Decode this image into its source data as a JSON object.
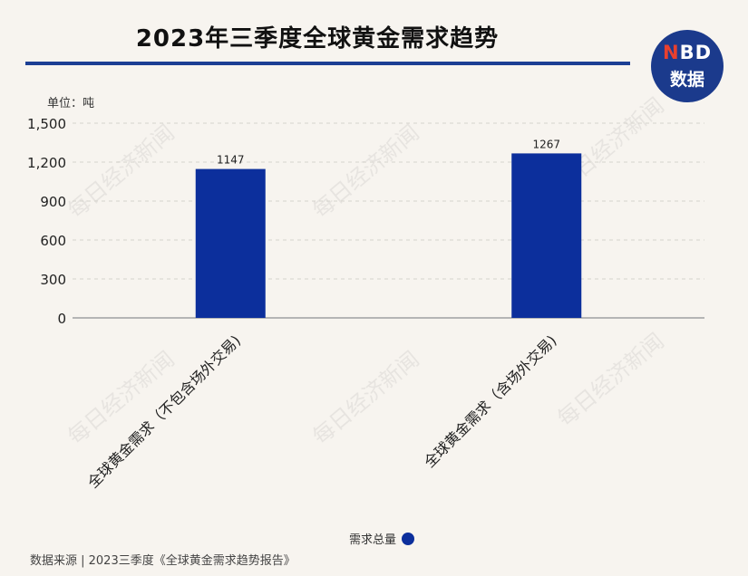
{
  "header": {
    "title": "2023年三季度全球黄金需求趋势",
    "logo_line1_n": "N",
    "logo_line1_rest": "BD",
    "logo_line2": "数据"
  },
  "unit_label": "单位：吨",
  "watermark": "每日经济新闻",
  "legend": {
    "label": "需求总量",
    "color": "#0c2f9c"
  },
  "source": "数据来源 | 2023三季度《全球黄金需求趋势报告》",
  "colors": {
    "bar": "#0c2f9c",
    "title_rule": "#1c3f94",
    "background": "#f7f4ef"
  },
  "chart_data": {
    "type": "bar",
    "categories": [
      "全球黄金需求（不包含场外交易)",
      "全球黄金需求（含场外交易)"
    ],
    "series": [
      {
        "name": "需求总量",
        "values": [
          1147,
          1267
        ]
      }
    ],
    "data_labels": [
      "1147",
      "1267"
    ],
    "y_ticks": [
      "0",
      "300",
      "600",
      "900",
      "1,200",
      "1,500"
    ],
    "y_tick_values": [
      0,
      300,
      600,
      900,
      1200,
      1500
    ],
    "ylim": [
      0,
      1500
    ],
    "grid": true
  }
}
